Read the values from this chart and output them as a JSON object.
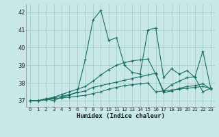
{
  "xlabel": "Humidex (Indice chaleur)",
  "xlim": [
    -0.5,
    23.5
  ],
  "ylim": [
    36.65,
    42.45
  ],
  "yticks": [
    37,
    38,
    39,
    40,
    41,
    42
  ],
  "xticks": [
    0,
    1,
    2,
    3,
    4,
    5,
    6,
    7,
    8,
    9,
    10,
    11,
    12,
    13,
    14,
    15,
    16,
    17,
    18,
    19,
    20,
    21,
    22,
    23
  ],
  "bg_color": "#c8e8e8",
  "grid_color": "#a0c8c8",
  "line_color": "#1a6e60",
  "lines": [
    [
      37.0,
      37.0,
      37.1,
      37.0,
      37.2,
      37.3,
      37.5,
      39.3,
      41.55,
      42.1,
      40.4,
      40.55,
      39.0,
      38.6,
      38.5,
      41.0,
      41.1,
      38.3,
      38.8,
      38.5,
      38.7,
      38.3,
      37.5,
      37.7
    ],
    [
      37.0,
      37.0,
      37.05,
      37.1,
      37.15,
      37.2,
      37.25,
      37.3,
      37.4,
      37.5,
      37.65,
      37.75,
      37.85,
      37.9,
      37.95,
      38.0,
      37.5,
      37.55,
      37.6,
      37.65,
      37.7,
      37.75,
      37.8,
      37.7
    ],
    [
      37.0,
      37.0,
      37.1,
      37.2,
      37.35,
      37.5,
      37.65,
      37.8,
      38.1,
      38.45,
      38.75,
      39.0,
      39.15,
      39.25,
      39.3,
      39.35,
      38.5,
      37.55,
      37.9,
      38.1,
      38.3,
      38.35,
      39.8,
      37.7
    ],
    [
      37.0,
      37.0,
      37.1,
      37.15,
      37.25,
      37.35,
      37.45,
      37.55,
      37.75,
      37.85,
      37.95,
      38.05,
      38.15,
      38.25,
      38.35,
      38.45,
      38.55,
      37.45,
      37.55,
      37.7,
      37.8,
      37.85,
      37.95,
      37.65
    ]
  ]
}
